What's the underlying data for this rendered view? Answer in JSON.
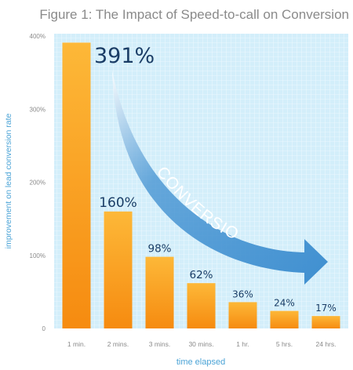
{
  "chart_data": {
    "type": "bar",
    "title": "Figure 1: The Impact of Speed-to-call on Conversion",
    "xlabel": "time elapsed",
    "ylabel": "improvement on lead conversion rate",
    "categories": [
      "1 min.",
      "2 mins.",
      "3 mins.",
      "30 mins.",
      "1 hr.",
      "5 hrs.",
      "24 hrs."
    ],
    "values": [
      391,
      160,
      98,
      62,
      36,
      24,
      17
    ],
    "value_labels": [
      "391%",
      "160%",
      "98%",
      "62%",
      "36%",
      "24%",
      "17%"
    ],
    "ylim": [
      0,
      400
    ],
    "yticks": [
      0,
      100,
      200,
      300,
      400
    ],
    "ytick_labels": [
      "0",
      "100%",
      "200%",
      "300%",
      "400%"
    ],
    "grid": true,
    "annotation": "CONVERSION",
    "colors": {
      "bar_top": "#fdb838",
      "bar_bottom": "#f68b10",
      "background": "#d3eefa",
      "grid": "#ffffff",
      "label_text": "#1a3d66",
      "axis_text": "#4aa3d6",
      "title_text": "#8a8a8a",
      "arrow": "#3f8fd0"
    }
  }
}
